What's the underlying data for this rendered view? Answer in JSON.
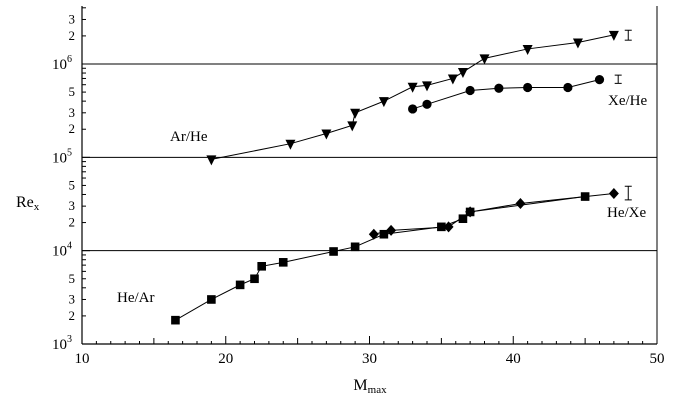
{
  "chart_data": {
    "type": "scatter",
    "xlabel": "M",
    "xlabel_sub": "max",
    "ylabel": "Re",
    "ylabel_sub": "x",
    "xlim": [
      10,
      50
    ],
    "ylim": [
      1000,
      4000000
    ],
    "yscale": "log",
    "x_ticks": [
      "10",
      "20",
      "30",
      "40",
      "50"
    ],
    "y_major_ticks": [
      {
        "value": 1000,
        "base": "10",
        "exp": "3"
      },
      {
        "value": 10000,
        "base": "10",
        "exp": "4"
      },
      {
        "value": 100000,
        "base": "10",
        "exp": "5"
      },
      {
        "value": 1000000,
        "base": "10",
        "exp": "6"
      }
    ],
    "y_minor_labels": [
      "2",
      "3",
      "5"
    ],
    "horizontal_lines": [
      10000,
      100000,
      1000000
    ],
    "grid": false,
    "legend": "none",
    "series": [
      {
        "name": "Ar/He",
        "marker": "triangle-down",
        "points": [
          [
            19,
            95000
          ],
          [
            24.5,
            140000
          ],
          [
            27,
            180000
          ],
          [
            28.8,
            220000
          ],
          [
            29,
            300000
          ],
          [
            31,
            400000
          ],
          [
            33,
            570000
          ],
          [
            34,
            590000
          ],
          [
            35.8,
            700000
          ],
          [
            36.5,
            820000
          ],
          [
            38,
            1150000
          ],
          [
            41,
            1450000
          ],
          [
            44.5,
            1700000
          ],
          [
            47,
            2050000
          ]
        ]
      },
      {
        "name": "Xe/He",
        "marker": "circle",
        "points": [
          [
            33,
            330000
          ],
          [
            34,
            370000
          ],
          [
            37,
            520000
          ],
          [
            39,
            550000
          ],
          [
            41,
            560000
          ],
          [
            43.8,
            560000
          ],
          [
            46,
            680000
          ]
        ]
      },
      {
        "name": "He/Xe",
        "marker": "diamond",
        "points": [
          [
            30.3,
            15000
          ],
          [
            31.5,
            16500
          ],
          [
            35.5,
            18000
          ],
          [
            37,
            26000
          ],
          [
            40.5,
            32000
          ],
          [
            47,
            41000
          ]
        ]
      },
      {
        "name": "He/Ar",
        "marker": "square",
        "points": [
          [
            16.5,
            1800
          ],
          [
            19,
            3000
          ],
          [
            21,
            4300
          ],
          [
            22,
            5000
          ],
          [
            22.5,
            6800
          ],
          [
            24,
            7500
          ],
          [
            27.5,
            9800
          ],
          [
            29,
            11000
          ],
          [
            31,
            15000
          ],
          [
            35,
            18000
          ],
          [
            36.5,
            22000
          ],
          [
            37,
            26000
          ],
          [
            45,
            38000
          ]
        ]
      }
    ],
    "error_bars": [
      {
        "x": 48,
        "low": 1800000,
        "high": 2300000
      },
      {
        "x": 47.3,
        "low": 620000,
        "high": 760000
      },
      {
        "x": 48,
        "low": 35000,
        "high": 49000
      }
    ]
  }
}
